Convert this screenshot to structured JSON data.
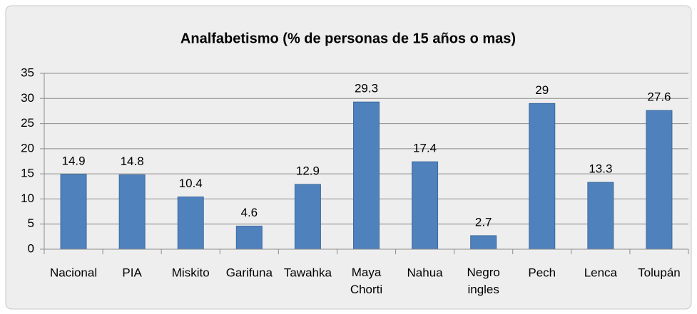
{
  "chart_data": {
    "type": "bar",
    "title": "Analfabetismo (% de personas de 15 años o mas)",
    "categories": [
      "Nacional",
      "PIA",
      "Miskito",
      "Garifuna",
      "Tawahka",
      "Maya Chorti",
      "Nahua",
      "Negro ingles",
      "Pech",
      "Lenca",
      "Tolupán"
    ],
    "values": [
      14.9,
      14.8,
      10.4,
      4.6,
      12.9,
      29.3,
      17.4,
      2.7,
      29,
      13.3,
      27.6
    ],
    "color": "#4f81bd",
    "ylim": [
      0,
      35
    ],
    "yticks": [
      0,
      5,
      10,
      15,
      20,
      25,
      30,
      35
    ],
    "grid": true
  }
}
